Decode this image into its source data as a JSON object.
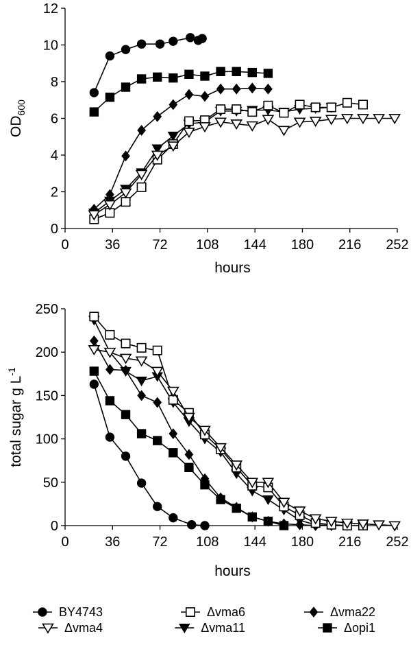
{
  "chart_data": [
    {
      "type": "line",
      "title": "",
      "xlabel": "hours",
      "ylabel": "OD",
      "ylabel_sub": "600",
      "xlim": [
        0,
        252
      ],
      "ylim": [
        0,
        12
      ],
      "xticks": [
        0,
        36,
        72,
        108,
        144,
        180,
        216,
        252
      ],
      "yticks": [
        0,
        2,
        4,
        6,
        8,
        10,
        12
      ],
      "grid": false,
      "series": [
        {
          "name": "BY4743",
          "marker": "circle-filled",
          "x": [
            22,
            34,
            46,
            58,
            72,
            82,
            95,
            101,
            104
          ],
          "y": [
            7.4,
            9.4,
            9.75,
            10.05,
            10.05,
            10.2,
            10.4,
            10.25,
            10.35
          ]
        },
        {
          "name": "Δopi1",
          "marker": "square-filled",
          "x": [
            22,
            34,
            46,
            58,
            70,
            82,
            94,
            106,
            118,
            130,
            142,
            154
          ],
          "y": [
            6.35,
            7.15,
            7.7,
            8.15,
            8.25,
            8.2,
            8.4,
            8.3,
            8.55,
            8.55,
            8.5,
            8.45
          ]
        },
        {
          "name": "Δvma22",
          "marker": "diamond-filled",
          "x": [
            22,
            34,
            46,
            58,
            70,
            82,
            94,
            106,
            118,
            130,
            142,
            154
          ],
          "y": [
            1.05,
            1.85,
            3.95,
            5.35,
            6.1,
            6.75,
            7.3,
            7.2,
            7.6,
            7.6,
            7.65,
            7.6
          ]
        },
        {
          "name": "Δvma11",
          "marker": "triangle-down-filled",
          "x": [
            22,
            34,
            46,
            58,
            70,
            82,
            94,
            106,
            118,
            130,
            142,
            154,
            166,
            178,
            190,
            202
          ],
          "y": [
            0.85,
            1.5,
            2.15,
            3.05,
            4.35,
            5.05,
            5.7,
            5.8,
            6.4,
            6.4,
            6.45,
            6.45,
            6.35,
            6.5,
            6.55,
            6.6
          ]
        },
        {
          "name": "Δvma6",
          "marker": "square-open",
          "x": [
            22,
            34,
            46,
            58,
            70,
            82,
            94,
            106,
            118,
            130,
            142,
            154,
            166,
            178,
            190,
            202,
            214,
            226
          ],
          "y": [
            0.5,
            0.85,
            1.45,
            2.25,
            3.75,
            4.6,
            5.85,
            5.9,
            6.5,
            6.5,
            6.35,
            6.7,
            6.3,
            6.75,
            6.6,
            6.6,
            6.85,
            6.75
          ]
        },
        {
          "name": "Δvma4",
          "marker": "triangle-down-open",
          "x": [
            22,
            34,
            46,
            58,
            70,
            82,
            94,
            106,
            118,
            130,
            142,
            154,
            166,
            178,
            190,
            202,
            214,
            226,
            238,
            250
          ],
          "y": [
            0.75,
            1.3,
            1.95,
            2.95,
            4.0,
            4.5,
            5.25,
            5.55,
            5.8,
            5.7,
            5.6,
            5.95,
            5.35,
            5.8,
            5.85,
            5.95,
            6.0,
            6.0,
            6.0,
            6.0
          ]
        }
      ]
    },
    {
      "type": "line",
      "title": "",
      "xlabel": "hours",
      "ylabel": "total sugar g L",
      "ylabel_sup": "-1",
      "xlim": [
        0,
        252
      ],
      "ylim": [
        0,
        250
      ],
      "xticks": [
        0,
        36,
        72,
        108,
        144,
        180,
        216,
        252
      ],
      "yticks": [
        0,
        50,
        100,
        150,
        200,
        250
      ],
      "grid": false,
      "series": [
        {
          "name": "BY4743",
          "marker": "circle-filled",
          "x": [
            22,
            34,
            46,
            58,
            70,
            82,
            96,
            106
          ],
          "y": [
            163,
            102,
            80,
            49,
            22,
            9,
            1,
            0
          ]
        },
        {
          "name": "Δopi1",
          "marker": "square-filled",
          "x": [
            22,
            34,
            46,
            58,
            70,
            82,
            94,
            106,
            118,
            130,
            142,
            154,
            166
          ],
          "y": [
            178,
            144,
            128,
            106,
            98,
            84,
            67,
            47,
            30,
            20,
            10,
            5,
            0
          ]
        },
        {
          "name": "Δvma22",
          "marker": "diamond-filled",
          "x": [
            22,
            34,
            46,
            58,
            70,
            82,
            94,
            106,
            118,
            130,
            142,
            154,
            166,
            178,
            190,
            202
          ],
          "y": [
            213,
            180,
            179,
            150,
            142,
            106,
            82,
            54,
            32,
            21,
            10,
            5,
            2,
            1,
            0,
            0
          ]
        },
        {
          "name": "Δvma11",
          "marker": "triangle-down-filled",
          "x": [
            22,
            34,
            46,
            58,
            70,
            82,
            94,
            106,
            118,
            130,
            142,
            154,
            166,
            178,
            190,
            202,
            214
          ],
          "y": [
            237,
            200,
            178,
            167,
            172,
            142,
            120,
            100,
            85,
            60,
            40,
            30,
            18,
            6,
            1,
            0,
            0
          ]
        },
        {
          "name": "Δvma6",
          "marker": "square-open",
          "x": [
            22,
            34,
            46,
            58,
            70,
            82,
            94,
            106,
            118,
            130,
            142,
            154,
            166,
            178,
            190,
            202,
            214,
            226
          ],
          "y": [
            241,
            220,
            210,
            205,
            202,
            145,
            130,
            105,
            88,
            67,
            46,
            44,
            22,
            12,
            3,
            1,
            0,
            0
          ]
        },
        {
          "name": "Δvma4",
          "marker": "triangle-down-open",
          "x": [
            22,
            34,
            46,
            58,
            70,
            82,
            94,
            106,
            118,
            130,
            142,
            154,
            166,
            178,
            190,
            202,
            214,
            226,
            238,
            250
          ],
          "y": [
            203,
            200,
            193,
            190,
            178,
            155,
            125,
            110,
            90,
            70,
            50,
            50,
            27,
            17,
            8,
            5,
            3,
            2,
            1,
            0
          ]
        }
      ]
    }
  ],
  "legend": {
    "placement": "bottom",
    "items": [
      {
        "label": "BY4743",
        "marker": "circle-filled"
      },
      {
        "label": "Δvma6",
        "marker": "square-open"
      },
      {
        "label": "Δvma22",
        "marker": "diamond-filled"
      },
      {
        "label": "Δvma4",
        "marker": "triangle-down-open"
      },
      {
        "label": "Δvma11",
        "marker": "triangle-down-filled"
      },
      {
        "label": "Δopi1",
        "marker": "square-filled"
      }
    ]
  },
  "colors": {
    "line": "#000000",
    "marker_fill": "#000000",
    "open_fill": "#ffffff"
  }
}
